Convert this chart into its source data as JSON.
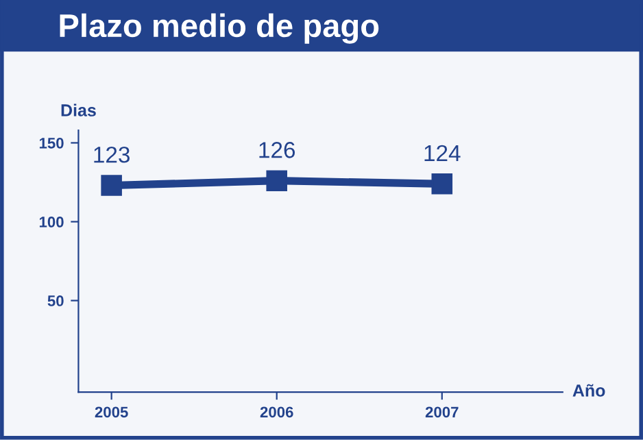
{
  "chart_data": {
    "type": "line",
    "title": "Plazo medio de pago",
    "ylabel": "Dias",
    "xlabel": "Año",
    "categories": [
      "2005",
      "2006",
      "2007"
    ],
    "series": [
      {
        "color": "#22428c",
        "values": [
          123,
          126,
          124
        ]
      }
    ],
    "ylim": [
      -8,
      158
    ],
    "yticks": [
      50,
      100,
      150
    ],
    "grid": false,
    "legend": false,
    "marker": "square",
    "line_style": "solid",
    "data_labels": true
  }
}
